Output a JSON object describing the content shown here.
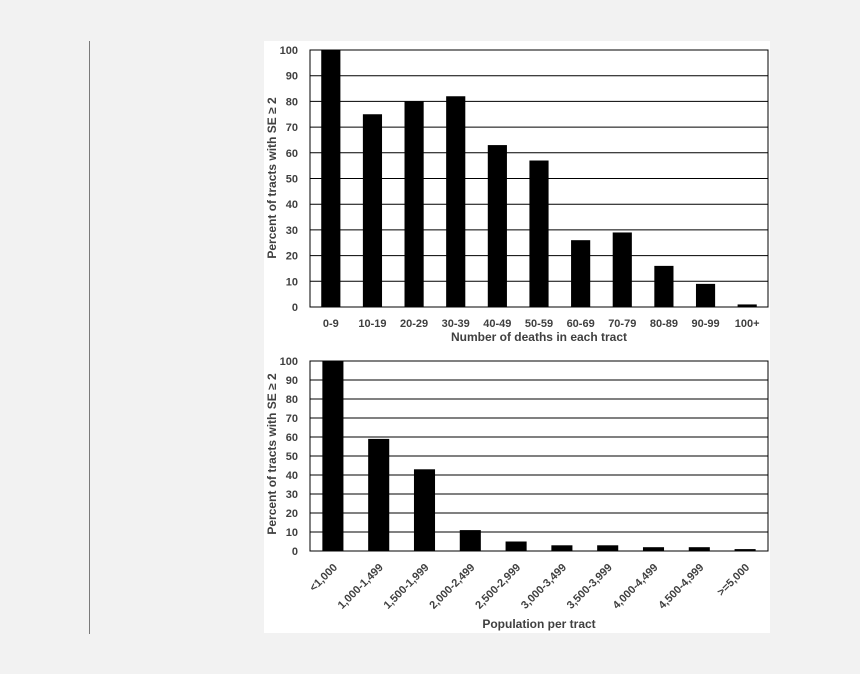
{
  "chart_data": [
    {
      "type": "bar",
      "title": "",
      "xlabel": "Number of deaths in each tract",
      "ylabel": "Percent of tracts with SE ≥ 2",
      "categories": [
        "0-9",
        "10-19",
        "20-29",
        "30-39",
        "40-49",
        "50-59",
        "60-69",
        "70-79",
        "80-89",
        "90-99",
        "100+"
      ],
      "values": [
        100,
        75,
        80,
        82,
        63,
        57,
        26,
        29,
        16,
        9,
        1
      ],
      "ylim": [
        0,
        100
      ],
      "yticks": [
        0,
        10,
        20,
        30,
        40,
        50,
        60,
        70,
        80,
        90,
        100
      ],
      "grid": true,
      "bar_color": "#000000"
    },
    {
      "type": "bar",
      "title": "",
      "xlabel": "Population per tract",
      "ylabel": "Percent of  tracts with SE ≥ 2",
      "categories": [
        "<1,000",
        "1,000-1,499",
        "1,500-1,999",
        "2,000-2,499",
        "2,500-2,999",
        "3,000-3,499",
        "3,500-3,999",
        "4,000-4,499",
        "4,500-4,999",
        ">=5,000"
      ],
      "values": [
        100,
        59,
        43,
        11,
        5,
        3,
        3,
        2,
        2,
        1
      ],
      "ylim": [
        0,
        100
      ],
      "yticks": [
        0,
        10,
        20,
        30,
        40,
        50,
        60,
        70,
        80,
        90,
        100
      ],
      "grid": true,
      "bar_color": "#000000"
    }
  ]
}
